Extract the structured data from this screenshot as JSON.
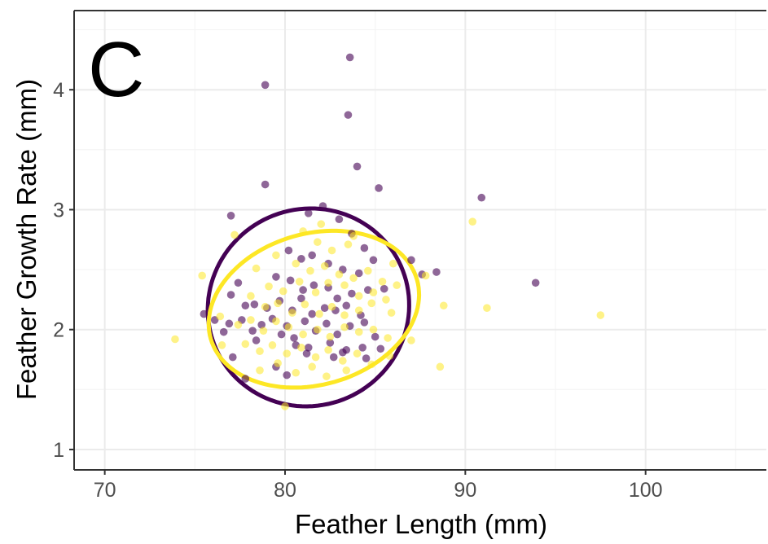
{
  "chart_data": {
    "type": "scatter",
    "panel_label": "C",
    "xlabel": "Feather Length (mm)",
    "ylabel": "Feather Growth Rate (mm)",
    "xlim": [
      68.3,
      106.7
    ],
    "ylim": [
      0.83,
      4.66
    ],
    "x_ticks": [
      70,
      80,
      90,
      100
    ],
    "x_tick_labels": [
      "70",
      "80",
      "90",
      "100"
    ],
    "y_ticks": [
      1,
      2,
      3,
      4
    ],
    "y_tick_labels": [
      "1",
      "2",
      "3",
      "4"
    ],
    "grid": true,
    "legend": "none",
    "series": [
      {
        "color": "#440154",
        "points": [
          [
            83.6,
            4.27
          ],
          [
            78.9,
            4.04
          ],
          [
            83.5,
            3.79
          ],
          [
            84.0,
            3.36
          ],
          [
            78.9,
            3.21
          ],
          [
            85.2,
            3.18
          ],
          [
            90.9,
            3.1
          ],
          [
            77.0,
            2.95
          ],
          [
            81.3,
            2.97
          ],
          [
            82.1,
            3.03
          ],
          [
            83.0,
            2.92
          ],
          [
            83.7,
            2.8
          ],
          [
            84.4,
            2.68
          ],
          [
            80.2,
            2.66
          ],
          [
            80.9,
            2.59
          ],
          [
            81.5,
            2.62
          ],
          [
            82.4,
            2.55
          ],
          [
            83.2,
            2.5
          ],
          [
            84.1,
            2.47
          ],
          [
            84.9,
            2.58
          ],
          [
            87.0,
            2.58
          ],
          [
            87.6,
            2.46
          ],
          [
            88.4,
            2.48
          ],
          [
            93.9,
            2.39
          ],
          [
            79.5,
            2.44
          ],
          [
            80.3,
            2.41
          ],
          [
            81.0,
            2.33
          ],
          [
            81.6,
            2.37
          ],
          [
            82.4,
            2.35
          ],
          [
            82.9,
            2.26
          ],
          [
            83.7,
            2.3
          ],
          [
            84.6,
            2.33
          ],
          [
            85.5,
            2.34
          ],
          [
            77.4,
            2.39
          ],
          [
            77.8,
            2.2
          ],
          [
            78.3,
            2.21
          ],
          [
            79.0,
            2.18
          ],
          [
            79.7,
            2.24
          ],
          [
            80.4,
            2.16
          ],
          [
            80.9,
            2.26
          ],
          [
            81.5,
            2.13
          ],
          [
            82.2,
            2.18
          ],
          [
            82.8,
            2.16
          ],
          [
            83.4,
            2.2
          ],
          [
            84.2,
            2.12
          ],
          [
            77.0,
            2.29
          ],
          [
            75.5,
            2.13
          ],
          [
            76.1,
            2.08
          ],
          [
            76.9,
            2.05
          ],
          [
            77.6,
            2.08
          ],
          [
            78.2,
            1.99
          ],
          [
            78.7,
            2.04
          ],
          [
            79.3,
            2.09
          ],
          [
            80.1,
            2.03
          ],
          [
            80.5,
            1.93
          ],
          [
            81.1,
            2.07
          ],
          [
            81.7,
            1.99
          ],
          [
            82.3,
            2.05
          ],
          [
            82.9,
            1.96
          ],
          [
            83.6,
            2.03
          ],
          [
            84.4,
            2.06
          ],
          [
            85.0,
            1.94
          ],
          [
            76.6,
            1.98
          ],
          [
            78.4,
            1.91
          ],
          [
            79.8,
            1.96
          ],
          [
            80.6,
            1.87
          ],
          [
            81.3,
            1.85
          ],
          [
            82.5,
            1.89
          ],
          [
            83.4,
            1.83
          ],
          [
            84.3,
            1.85
          ],
          [
            85.3,
            1.84
          ],
          [
            80.1,
            1.62
          ],
          [
            81.2,
            1.8
          ],
          [
            82.7,
            1.77
          ],
          [
            83.2,
            1.81
          ],
          [
            84.5,
            1.76
          ],
          [
            77.1,
            1.77
          ],
          [
            77.8,
            1.59
          ],
          [
            79.5,
            1.69
          ]
        ]
      },
      {
        "color": "#fde725",
        "points": [
          [
            82.0,
            2.88
          ],
          [
            90.4,
            2.9
          ],
          [
            77.2,
            2.79
          ],
          [
            83.8,
            2.78
          ],
          [
            81.0,
            2.82
          ],
          [
            81.8,
            2.73
          ],
          [
            82.6,
            2.66
          ],
          [
            83.5,
            2.71
          ],
          [
            86.0,
            2.55
          ],
          [
            79.5,
            2.62
          ],
          [
            80.6,
            2.55
          ],
          [
            81.4,
            2.49
          ],
          [
            82.2,
            2.53
          ],
          [
            83.0,
            2.46
          ],
          [
            83.8,
            2.43
          ],
          [
            84.6,
            2.49
          ],
          [
            85.4,
            2.4
          ],
          [
            86.2,
            2.37
          ],
          [
            87.8,
            2.45
          ],
          [
            75.4,
            2.45
          ],
          [
            78.4,
            2.51
          ],
          [
            79.1,
            2.36
          ],
          [
            79.9,
            2.32
          ],
          [
            80.8,
            2.4
          ],
          [
            81.7,
            2.31
          ],
          [
            82.4,
            2.39
          ],
          [
            83.3,
            2.37
          ],
          [
            84.1,
            2.28
          ],
          [
            84.9,
            2.31
          ],
          [
            85.6,
            2.25
          ],
          [
            78.1,
            2.28
          ],
          [
            78.9,
            2.19
          ],
          [
            79.6,
            2.22
          ],
          [
            80.4,
            2.14
          ],
          [
            81.1,
            2.21
          ],
          [
            81.9,
            2.13
          ],
          [
            82.6,
            2.19
          ],
          [
            83.3,
            2.12
          ],
          [
            84.1,
            2.16
          ],
          [
            84.8,
            2.22
          ],
          [
            85.9,
            2.14
          ],
          [
            88.8,
            2.2
          ],
          [
            91.2,
            2.18
          ],
          [
            97.5,
            2.12
          ],
          [
            76.4,
            2.11
          ],
          [
            77.4,
            2.04
          ],
          [
            78.1,
            2.08
          ],
          [
            78.8,
            1.99
          ],
          [
            79.5,
            2.07
          ],
          [
            80.2,
            2.02
          ],
          [
            81.0,
            1.96
          ],
          [
            81.8,
            2.0
          ],
          [
            82.5,
            1.94
          ],
          [
            83.3,
            2.02
          ],
          [
            84.1,
            1.98
          ],
          [
            84.9,
            2.0
          ],
          [
            85.7,
            1.93
          ],
          [
            87.0,
            1.91
          ],
          [
            73.9,
            1.92
          ],
          [
            76.5,
            1.87
          ],
          [
            77.8,
            1.88
          ],
          [
            78.6,
            1.82
          ],
          [
            79.3,
            1.87
          ],
          [
            80.1,
            1.8
          ],
          [
            80.9,
            1.85
          ],
          [
            81.7,
            1.77
          ],
          [
            82.4,
            1.83
          ],
          [
            83.2,
            1.74
          ],
          [
            84.0,
            1.8
          ],
          [
            84.8,
            1.71
          ],
          [
            85.8,
            1.78
          ],
          [
            88.6,
            1.69
          ],
          [
            79.6,
            1.72
          ],
          [
            80.6,
            1.64
          ],
          [
            81.5,
            1.69
          ],
          [
            82.3,
            1.61
          ],
          [
            83.4,
            1.66
          ],
          [
            78.6,
            1.66
          ],
          [
            80.0,
            1.36
          ]
        ]
      }
    ],
    "ellipses": [
      {
        "color": "#440154",
        "cx": 81.3,
        "cy": 2.185,
        "rx": 5.62,
        "ry": 0.82,
        "angle_deg": 27
      },
      {
        "color": "#fde725",
        "cx": 81.6,
        "cy": 2.17,
        "rx": 5.95,
        "ry": 0.63,
        "angle_deg": 16
      }
    ],
    "colors": {
      "grid_major": "#ebebeb",
      "grid_minor": "#f4f4f4",
      "axis": "#333333",
      "background": "#ffffff"
    }
  }
}
